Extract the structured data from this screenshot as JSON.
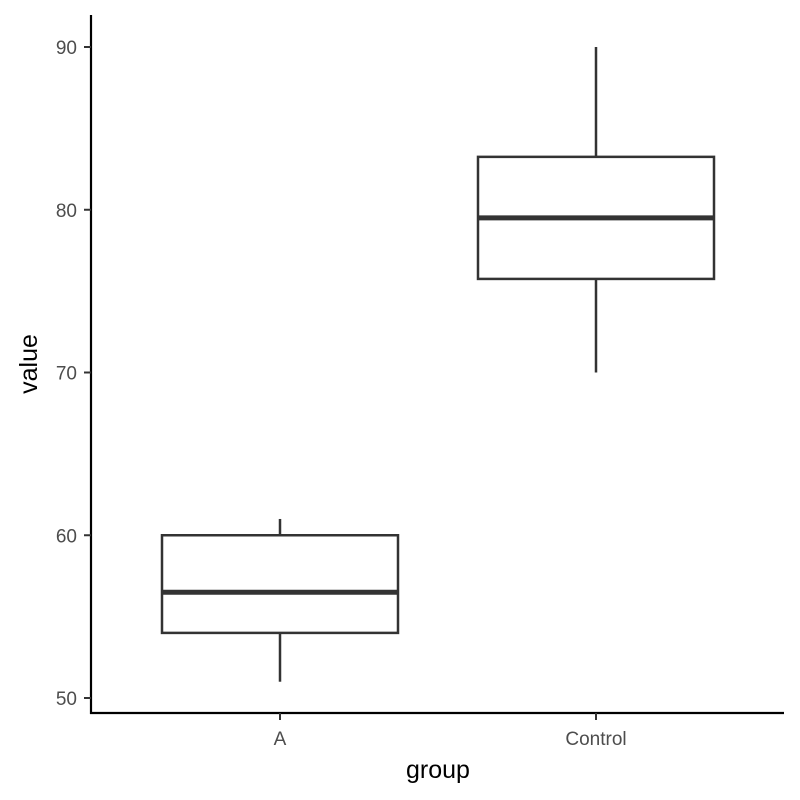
{
  "chart_data": {
    "type": "boxplot",
    "xlabel": "group",
    "ylabel": "value",
    "categories": [
      "A",
      "Control"
    ],
    "ylim": [
      49,
      92
    ],
    "yticks": [
      50,
      60,
      70,
      80,
      90
    ],
    "grid": false,
    "boxes": [
      {
        "category": "A",
        "whisker_low": 51,
        "q1": 54,
        "median": 56.5,
        "q3": 60,
        "whisker_high": 61
      },
      {
        "category": "Control",
        "whisker_low": 70,
        "q1": 75.75,
        "median": 79.5,
        "q3": 83.25,
        "whisker_high": 90
      }
    ],
    "colors": {
      "box_stroke": "#333333",
      "box_fill": "#ffffff",
      "axis": "#000000",
      "tick_text": "#4d4d4d"
    }
  }
}
